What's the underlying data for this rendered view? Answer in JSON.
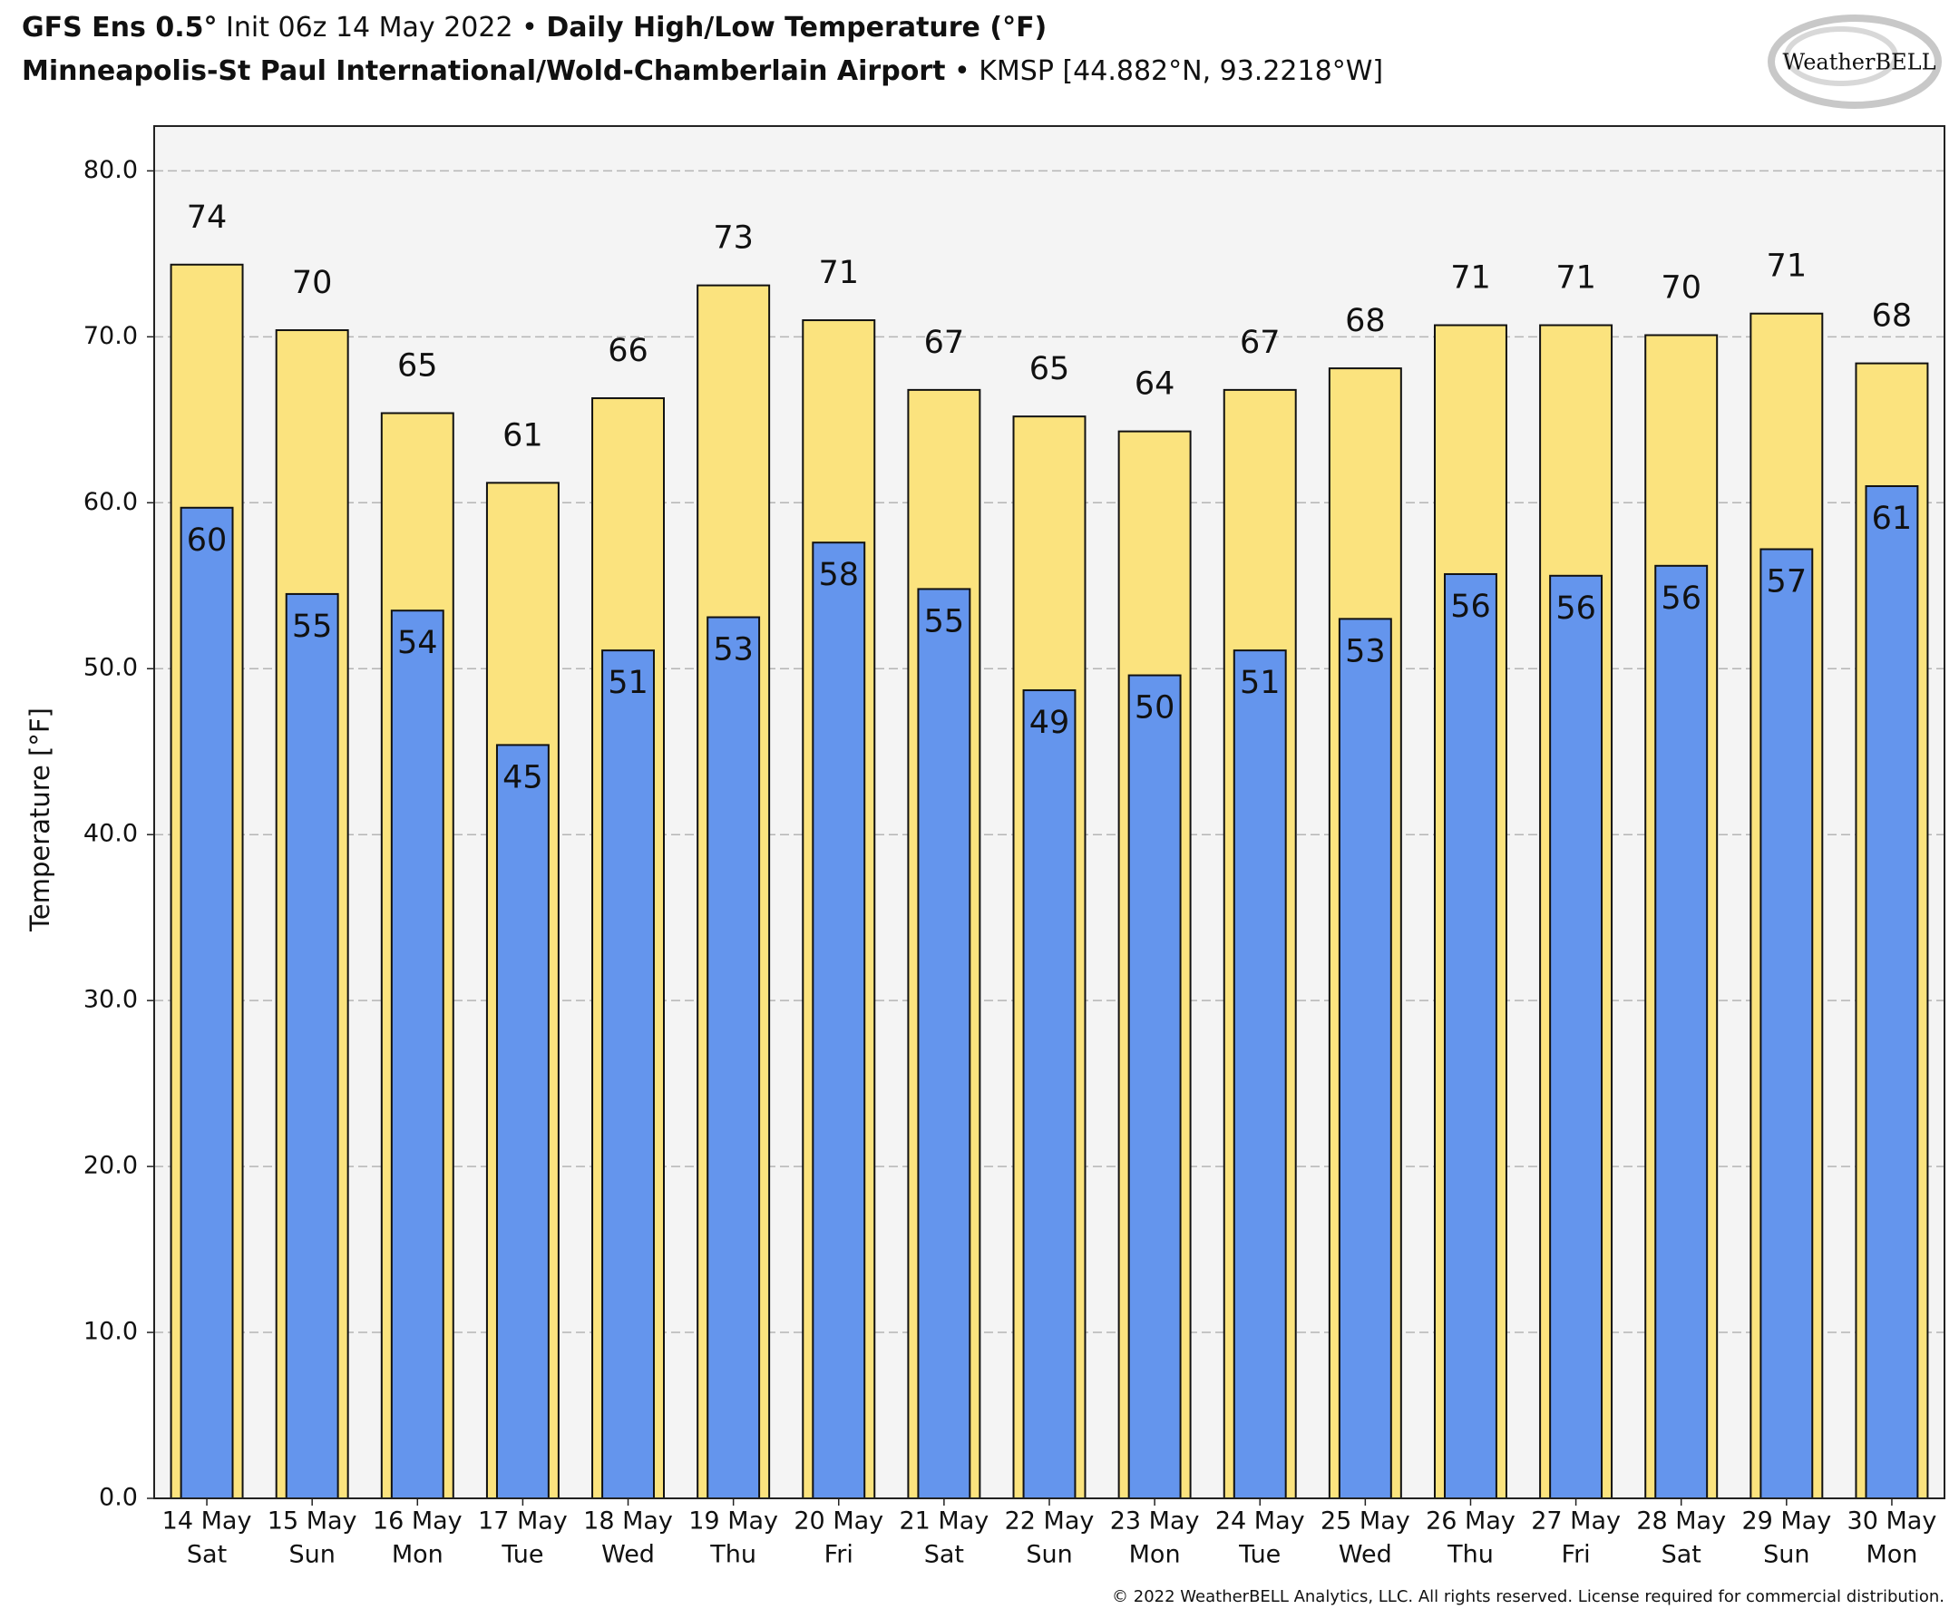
{
  "chart_data": {
    "type": "bar",
    "title_lines": [
      [
        {
          "text": "GFS Ens 0.5°",
          "bold": true
        },
        {
          "text": " Init 06z 14 May 2022 • ",
          "bold": false
        },
        {
          "text": "Daily High/Low Temperature (°F)",
          "bold": true
        }
      ],
      [
        {
          "text": "Minneapolis-St Paul International/Wold-Chamberlain Airport",
          "bold": true
        },
        {
          "text": " • KMSP [44.882°N, 93.2218°W]",
          "bold": false
        }
      ]
    ],
    "logo": "WeatherBELL",
    "y_label": "Temperature [°F]",
    "footer": "© 2022 WeatherBELL Analytics, LLC. All rights reserved. License required for commercial distribution.",
    "categories": [
      "14 May",
      "15 May",
      "16 May",
      "17 May",
      "18 May",
      "19 May",
      "20 May",
      "21 May",
      "22 May",
      "23 May",
      "24 May",
      "25 May",
      "26 May",
      "27 May",
      "28 May",
      "29 May",
      "30 May"
    ],
    "category_sublabels": [
      "Sat",
      "Sun",
      "Mon",
      "Tue",
      "Wed",
      "Thu",
      "Fri",
      "Sat",
      "Sun",
      "Mon",
      "Tue",
      "Wed",
      "Thu",
      "Fri",
      "Sat",
      "Sun",
      "Mon"
    ],
    "series": [
      {
        "color": "#fbe37e",
        "width": 0.68,
        "values": [
          74.35,
          70.4,
          65.4,
          61.2,
          66.3,
          73.1,
          71.0,
          66.8,
          65.2,
          64.3,
          66.8,
          68.1,
          70.7,
          70.7,
          70.1,
          71.4,
          68.4
        ],
        "value_labels": [
          "74",
          "70",
          "65",
          "61",
          "66",
          "73",
          "71",
          "67",
          "65",
          "64",
          "67",
          "68",
          "71",
          "71",
          "70",
          "71",
          "68"
        ]
      },
      {
        "color": "#6495ed",
        "width": 0.49,
        "values": [
          59.7,
          54.5,
          53.5,
          45.4,
          51.1,
          53.1,
          57.6,
          54.8,
          48.7,
          49.6,
          51.1,
          53.0,
          55.7,
          55.6,
          56.2,
          57.2,
          61.0
        ],
        "value_labels": [
          "60",
          "55",
          "54",
          "45",
          "51",
          "53",
          "58",
          "55",
          "49",
          "50",
          "51",
          "53",
          "56",
          "56",
          "56",
          "57",
          "61"
        ]
      }
    ],
    "ylim": [
      0,
      82.7
    ],
    "yticks": [
      {
        "value": 0,
        "label": "0.0"
      },
      {
        "value": 10,
        "label": "10.0"
      },
      {
        "value": 20,
        "label": "20.0"
      },
      {
        "value": 30,
        "label": "30.0"
      },
      {
        "value": 40,
        "label": "40.0"
      },
      {
        "value": 50,
        "label": "50.0"
      },
      {
        "value": 60,
        "label": "60.0"
      },
      {
        "value": 70,
        "label": "70.0"
      },
      {
        "value": 80,
        "label": "80.0"
      }
    ],
    "grid": true
  }
}
